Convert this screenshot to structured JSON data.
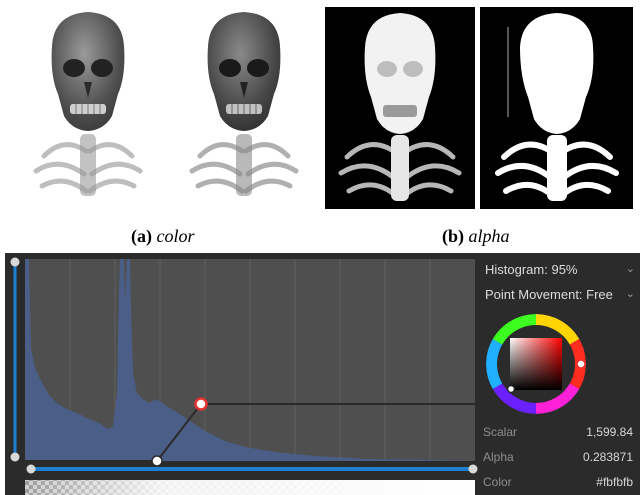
{
  "figure": {
    "caption_a": {
      "tag": "(a)",
      "text": "color"
    },
    "caption_b": {
      "tag": "(b)",
      "text": "alpha"
    }
  },
  "editor": {
    "histogram_dropdown": "Histogram: 95%",
    "movement_dropdown": "Point Movement: Free",
    "properties": {
      "scalar_label": "Scalar",
      "scalar_value": "1,599.84",
      "alpha_label": "Alpha",
      "alpha_value": "0.283871",
      "color_label": "Color",
      "color_value": "#fbfbfb"
    },
    "colors": {
      "accent": "#1e7fd0",
      "plot_bg": "#4f4f4f",
      "histogram": "#4a5f8c",
      "selected_point": "#e6332e"
    }
  }
}
